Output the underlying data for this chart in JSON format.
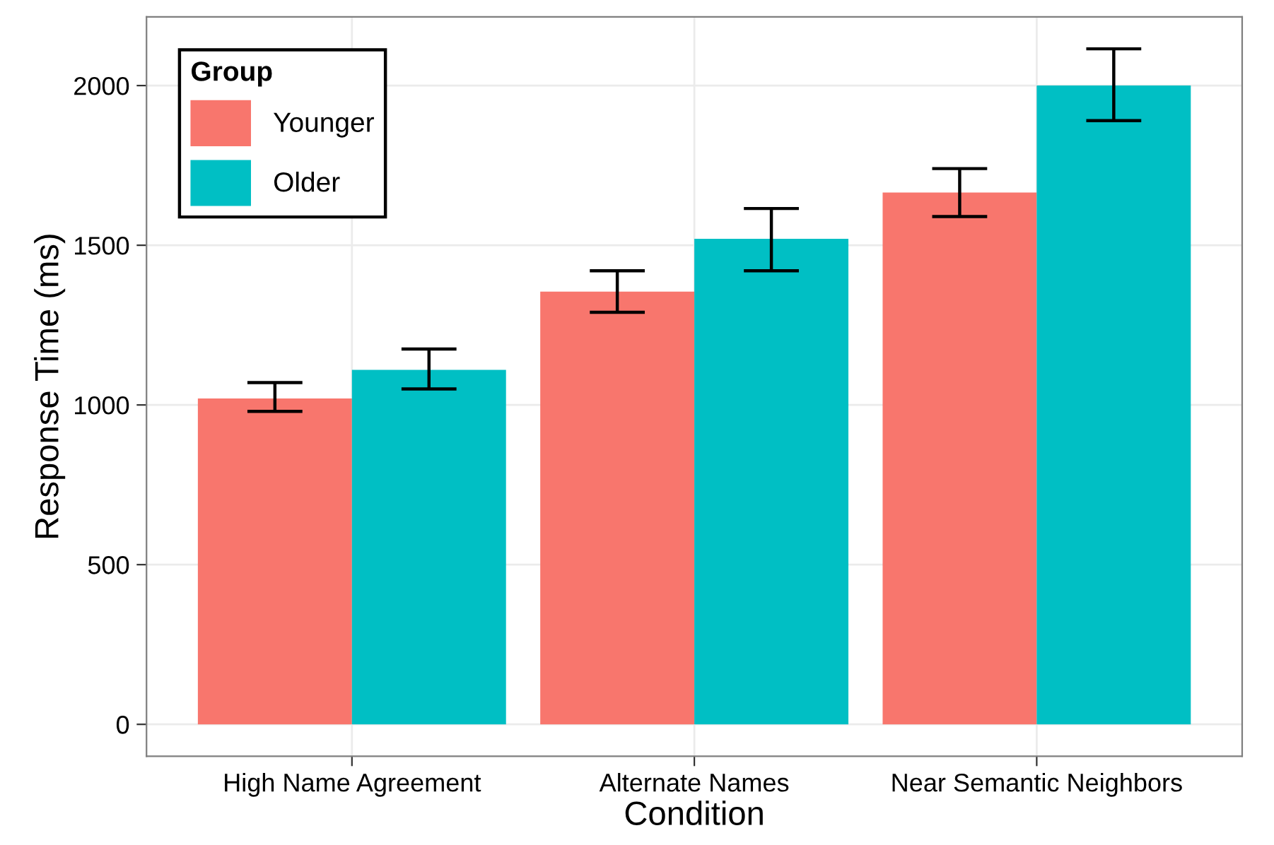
{
  "chart_data": {
    "type": "bar",
    "xlabel": "Condition",
    "ylabel": "Response Time (ms)",
    "legend_title": "Group",
    "categories": [
      "High Name Agreement",
      "Alternate Names",
      "Near Semantic Neighbors"
    ],
    "series": [
      {
        "name": "Younger",
        "color": "#f8766d",
        "values": [
          1020,
          1355,
          1665
        ],
        "errors": [
          [
            980,
            1070
          ],
          [
            1290,
            1420
          ],
          [
            1590,
            1740
          ]
        ]
      },
      {
        "name": "Older",
        "color": "#00bfc4",
        "values": [
          1110,
          1520,
          2000
        ],
        "errors": [
          [
            1050,
            1175
          ],
          [
            1420,
            1615
          ],
          [
            1890,
            2115
          ]
        ]
      }
    ],
    "ylim": [
      -100,
      2215
    ],
    "yticks": [
      0,
      500,
      1000,
      1500,
      2000
    ],
    "grid": true,
    "legend": "top left"
  }
}
